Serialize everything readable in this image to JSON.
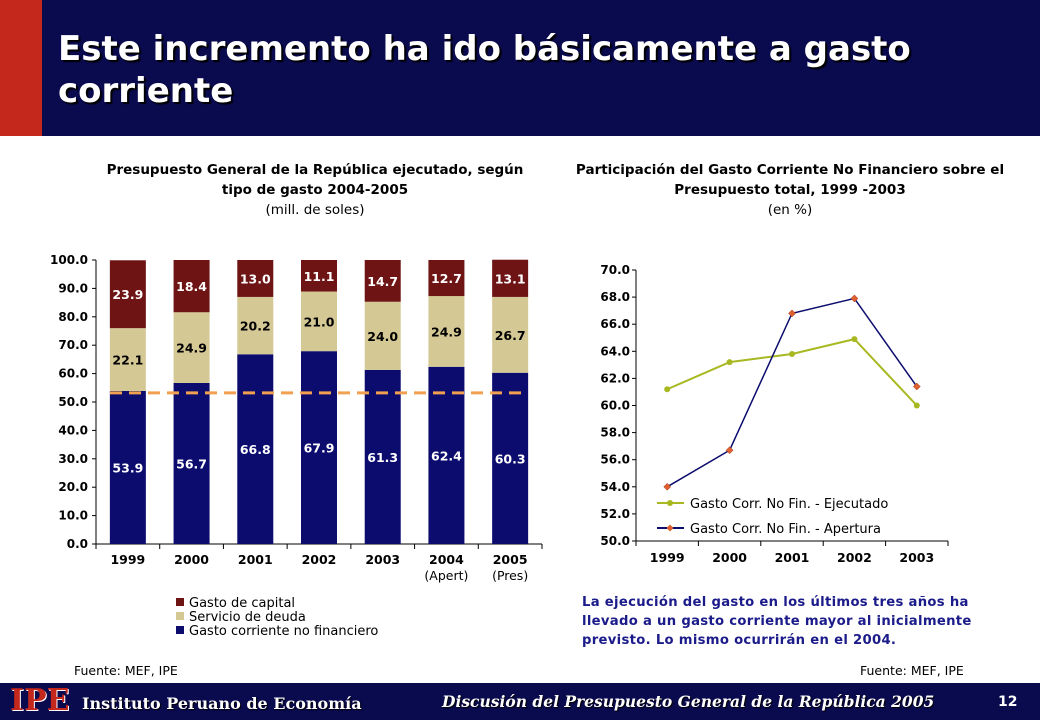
{
  "header": {
    "title": "Este incremento ha ido básicamente a gasto corriente"
  },
  "chart_data": [
    {
      "type": "bar",
      "stacked": true,
      "title": "Presupuesto General de la República ejecutado, según tipo de gasto 2004-2005",
      "subtitle": "(mill. de soles)",
      "categories": [
        "1999",
        "2000",
        "2001",
        "2002",
        "2003",
        "2004\n(Apert)",
        "2005\n(Pres)"
      ],
      "ylim": [
        0,
        100
      ],
      "yticks": [
        "0.0",
        "10.0",
        "20.0",
        "30.0",
        "40.0",
        "50.0",
        "60.0",
        "70.0",
        "80.0",
        "90.0",
        "100.0"
      ],
      "series": [
        {
          "name": "Gasto corriente no financiero",
          "color": "#0c0c6e",
          "label_color": "#ffffff",
          "values": [
            53.9,
            56.7,
            66.8,
            67.9,
            61.3,
            62.4,
            60.3
          ]
        },
        {
          "name": "Servicio de deuda",
          "color": "#d4c894",
          "label_color": "#000000",
          "values": [
            22.1,
            24.9,
            20.2,
            21.0,
            24.0,
            24.9,
            26.7
          ]
        },
        {
          "name": "Gasto de capital",
          "color": "#6e1414",
          "label_color": "#ffffff",
          "values": [
            23.9,
            18.4,
            13.0,
            11.1,
            14.7,
            12.7,
            13.1
          ]
        }
      ],
      "reference_line": {
        "value": 53.2,
        "color": "#f0a050",
        "style": "dashed"
      },
      "legend_position": "bottom",
      "source": "Fuente: MEF, IPE"
    },
    {
      "type": "line",
      "title": "Participación del Gasto Corriente No Financiero sobre el Presupuesto total, 1999 -2003",
      "subtitle": "(en %)",
      "x": [
        "1999",
        "2000",
        "2001",
        "2002",
        "2003"
      ],
      "ylim": [
        50,
        70
      ],
      "yticks": [
        "50.0",
        "52.0",
        "54.0",
        "56.0",
        "58.0",
        "60.0",
        "62.0",
        "64.0",
        "66.0",
        "68.0",
        "70.0"
      ],
      "series": [
        {
          "name": "Gasto Corr. No Fin. - Ejecutado",
          "color": "#a8b820",
          "values": [
            61.2,
            63.2,
            63.8,
            64.9,
            60.0
          ]
        },
        {
          "name": "Gasto Corr. No Fin. - Apertura",
          "color": "#0c0c6e",
          "marker_color": "#e06030",
          "values": [
            54.0,
            56.7,
            66.8,
            67.9,
            61.4
          ]
        }
      ],
      "legend_position": "bottom-inside",
      "source": "Fuente: MEF, IPE"
    }
  ],
  "note": "La ejecución del gasto en los últimos tres años ha llevado a un gasto corriente mayor al inicialmente previsto. Lo mismo ocurrirán en el 2004.",
  "footer": {
    "logo": "IPE",
    "org": "Instituto Peruano de Economía",
    "event": "Discusión del Presupuesto General de la República 2005",
    "page": "12"
  }
}
